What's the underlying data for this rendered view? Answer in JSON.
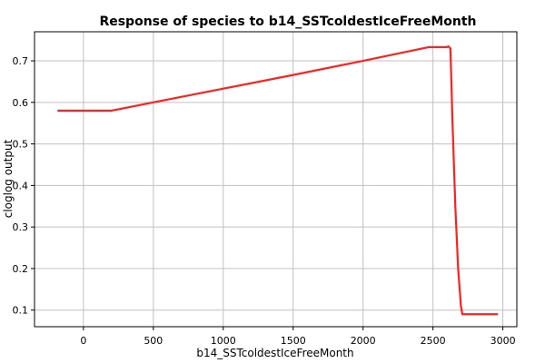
{
  "chart_data": {
    "type": "line",
    "title": "Response of species to b14_SSTcoldestIceFreeMonth",
    "xlabel": "b14_SSTcoldestIceFreeMonth",
    "ylabel": "cloglog output",
    "xlim": [
      -350,
      3100
    ],
    "ylim": [
      0.06,
      0.77
    ],
    "x_ticks": [
      0,
      500,
      1000,
      1500,
      2000,
      2500,
      3000
    ],
    "y_ticks": [
      0.1,
      0.2,
      0.3,
      0.4,
      0.5,
      0.6,
      0.7
    ],
    "grid": true,
    "series": [
      {
        "color": "#ff2020",
        "points": [
          [
            -180,
            0.58
          ],
          [
            200,
            0.58
          ],
          [
            500,
            0.6
          ],
          [
            1000,
            0.633
          ],
          [
            1500,
            0.666
          ],
          [
            2000,
            0.7
          ],
          [
            2470,
            0.733
          ],
          [
            2600,
            0.733
          ],
          [
            2610,
            0.735
          ],
          [
            2625,
            0.73
          ],
          [
            2640,
            0.55
          ],
          [
            2660,
            0.35
          ],
          [
            2680,
            0.2
          ],
          [
            2700,
            0.11
          ],
          [
            2710,
            0.09
          ],
          [
            2960,
            0.09
          ]
        ]
      }
    ]
  }
}
